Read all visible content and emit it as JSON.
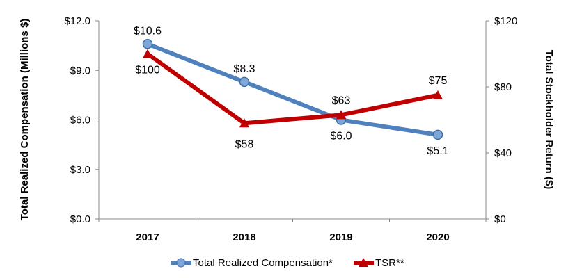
{
  "chart_data": {
    "type": "line",
    "categories": [
      "2017",
      "2018",
      "2019",
      "2020"
    ],
    "y_left": {
      "label": "Total Realized Compensation (Millions $)",
      "range": [
        0,
        12
      ],
      "ticks": [
        "$0.0",
        "$3.0",
        "$6.0",
        "$9.0",
        "$12.0"
      ],
      "tick_values": [
        0,
        3,
        6,
        9,
        12
      ]
    },
    "y_right": {
      "label": "Total Stockholder Return ($)",
      "range": [
        0,
        120
      ],
      "ticks": [
        "$0",
        "$40",
        "$80",
        "$120"
      ],
      "tick_values": [
        0,
        40,
        80,
        120
      ]
    },
    "series": [
      {
        "name": "Total Realized Compensation*",
        "axis": "left",
        "values": [
          10.6,
          8.3,
          6.0,
          5.1
        ],
        "labels": [
          "$10.6",
          "$8.3",
          "$6.0",
          "$5.1"
        ],
        "color": "#4f81bd",
        "marker": "circle"
      },
      {
        "name": "TSR**",
        "axis": "right",
        "values": [
          100,
          58,
          63,
          75
        ],
        "labels": [
          "$100",
          "$58",
          "$63",
          "$75"
        ],
        "color": "#c00000",
        "marker": "triangle"
      }
    ],
    "grid": false,
    "legend": "bottom"
  }
}
